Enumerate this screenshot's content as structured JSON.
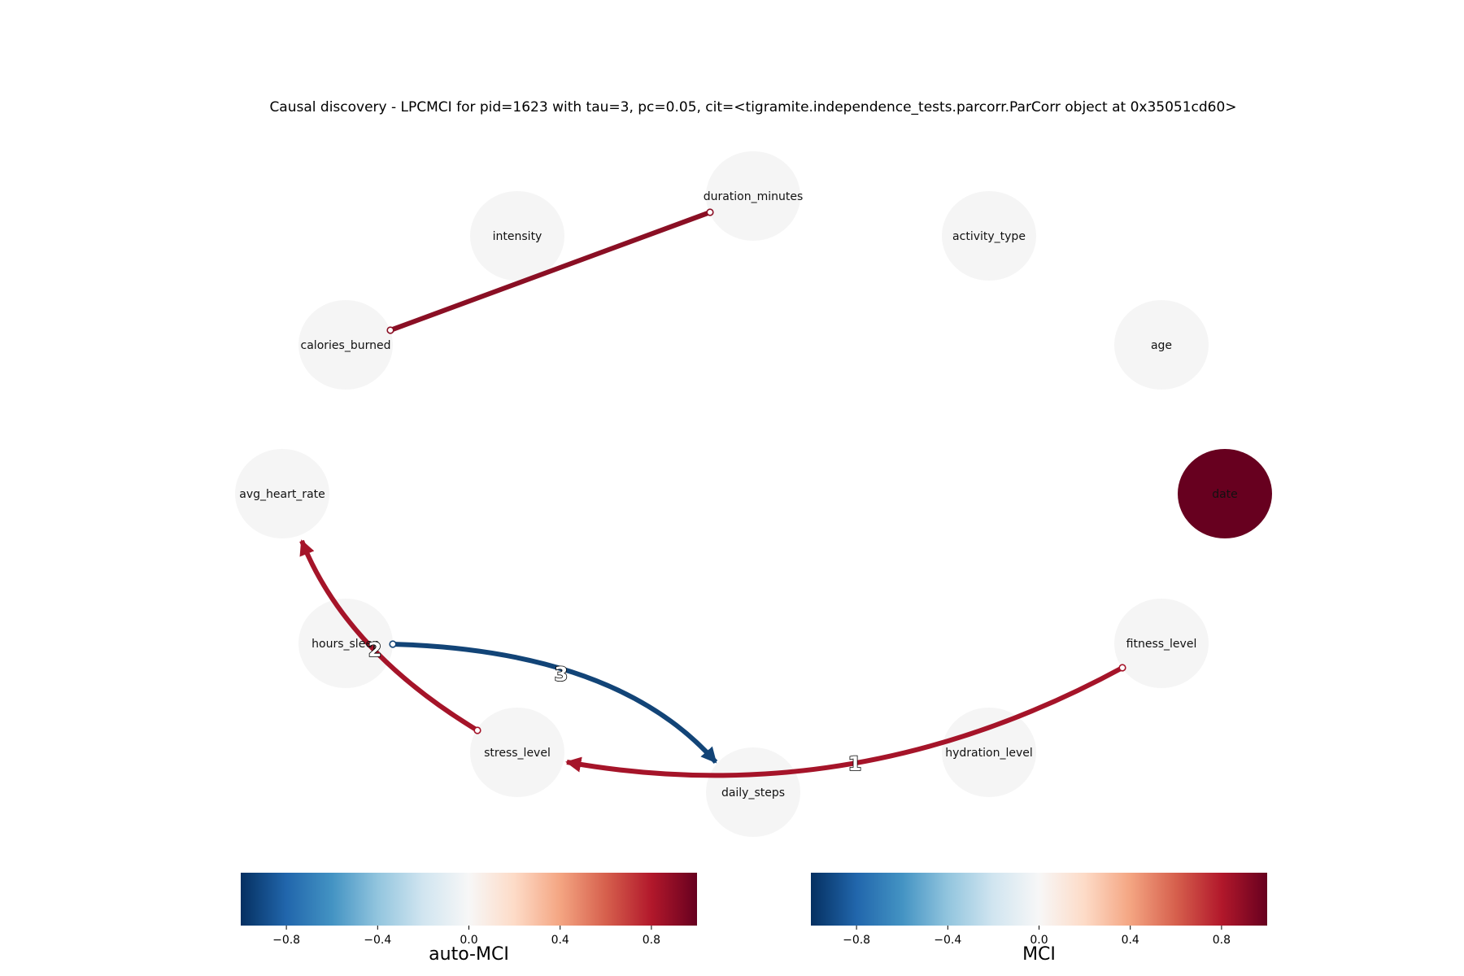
{
  "title": "Causal discovery - LPCMCI for pid=1623 with tau=3, pc=0.05, cit=<tigramite.independence_tests.parcorr.ParCorr object at 0x35051cd60>",
  "colors": {
    "node_default": "#f5f5f5",
    "node_date": "#67001f",
    "edge_red": "#a51429",
    "edge_dark_red": "#8a0f24",
    "edge_blue": "#124477"
  },
  "nodes": [
    {
      "id": "duration_minutes",
      "label": "duration_minutes"
    },
    {
      "id": "intensity",
      "label": "intensity"
    },
    {
      "id": "activity_type",
      "label": "activity_type"
    },
    {
      "id": "calories_burned",
      "label": "calories_burned"
    },
    {
      "id": "age",
      "label": "age"
    },
    {
      "id": "avg_heart_rate",
      "label": "avg_heart_rate"
    },
    {
      "id": "date",
      "label": "date",
      "auto_mci": 1.0
    },
    {
      "id": "hours_sleep",
      "label": "hours_sleep"
    },
    {
      "id": "fitness_level",
      "label": "fitness_level"
    },
    {
      "id": "stress_level",
      "label": "stress_level"
    },
    {
      "id": "hydration_level",
      "label": "hydration_level"
    },
    {
      "id": "daily_steps",
      "label": "daily_steps"
    }
  ],
  "edges": [
    {
      "from": "calories_burned",
      "to": "duration_minutes",
      "type": "o-o",
      "lag_label": ""
    },
    {
      "from": "stress_level",
      "to": "avg_heart_rate",
      "type": "o->",
      "lag_label": "2"
    },
    {
      "from": "hours_sleep",
      "to": "daily_steps",
      "type": "o->",
      "lag_label": "3"
    },
    {
      "from": "fitness_level",
      "to": "stress_level",
      "type": "o->",
      "lag_label": "1"
    }
  ],
  "colorbars": [
    {
      "label": "auto-MCI",
      "ticks": [
        "−0.8",
        "−0.4",
        "0.0",
        "0.4",
        "0.8"
      ],
      "range": [
        -1,
        1
      ]
    },
    {
      "label": "MCI",
      "ticks": [
        "−0.8",
        "−0.4",
        "0.0",
        "0.4",
        "0.8"
      ],
      "range": [
        -1,
        1
      ]
    }
  ]
}
